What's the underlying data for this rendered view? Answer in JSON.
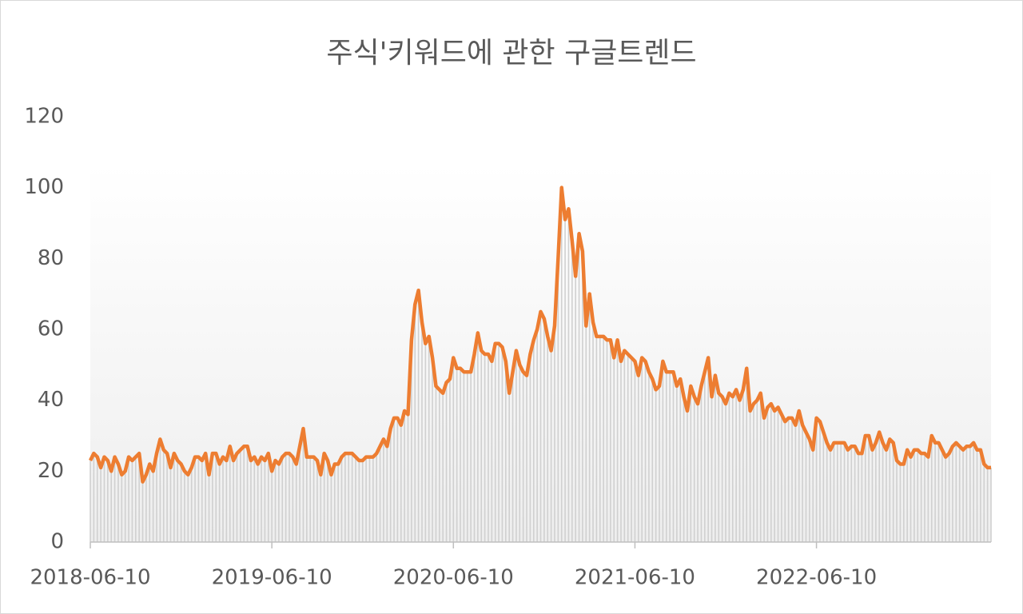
{
  "chart_data": {
    "type": "line",
    "title": "주식'키워드에 관한 구글트렌드",
    "categories": [
      "2018-06-10",
      null,
      null,
      null,
      null,
      null,
      null,
      null,
      null,
      null,
      null,
      null,
      null,
      null,
      null,
      null,
      null,
      null,
      null,
      null,
      null,
      null,
      null,
      null,
      null,
      null,
      null,
      null,
      null,
      null,
      null,
      null,
      null,
      null,
      null,
      null,
      null,
      null,
      null,
      null,
      null,
      null,
      null,
      null,
      null,
      null,
      null,
      null,
      null,
      null,
      null,
      null,
      "2019-06-10",
      null,
      null,
      null,
      null,
      null,
      null,
      null,
      null,
      null,
      null,
      null,
      null,
      null,
      null,
      null,
      null,
      null,
      null,
      null,
      null,
      null,
      null,
      null,
      null,
      null,
      null,
      null,
      null,
      null,
      null,
      null,
      null,
      null,
      null,
      null,
      null,
      null,
      null,
      null,
      null,
      null,
      null,
      null,
      null,
      null,
      null,
      null,
      null,
      null,
      null,
      null,
      "2020-06-10",
      null,
      null,
      null,
      null,
      null,
      null,
      null,
      null,
      null,
      null,
      null,
      null,
      null,
      null,
      null,
      null,
      null,
      null,
      null,
      null,
      null,
      null,
      null,
      null,
      null,
      null,
      null,
      null,
      null,
      null,
      null,
      null,
      null,
      null,
      null,
      null,
      null,
      null,
      null,
      null,
      null,
      null,
      null,
      null,
      null,
      null,
      null,
      null,
      null,
      null,
      null,
      "2021-06-10",
      null,
      null,
      null,
      null,
      null,
      null,
      null,
      null,
      null,
      null,
      null,
      null,
      null,
      null,
      null,
      null,
      null,
      null,
      null,
      null,
      null,
      null,
      null,
      null,
      null,
      null,
      null,
      null,
      null,
      null,
      null,
      null,
      null,
      null,
      null,
      null,
      null,
      null,
      null,
      null,
      null,
      null,
      null,
      null,
      null,
      null,
      null,
      null,
      null,
      null,
      null,
      "2022-06-10",
      null,
      null,
      null,
      null,
      null,
      null,
      null,
      null,
      null,
      null,
      null,
      null,
      null,
      null,
      null,
      null,
      null,
      null,
      null,
      null,
      null,
      null,
      null,
      null,
      null,
      null,
      null,
      null,
      null,
      null,
      null,
      null,
      null,
      null,
      null,
      null,
      null,
      null,
      null,
      null,
      null,
      null,
      null,
      null,
      null,
      null,
      null,
      null,
      null,
      null
    ],
    "series": [
      {
        "color": "#ed7d31",
        "bar_color": "#d0d0d0",
        "values": [
          23,
          25,
          24,
          21,
          24,
          23,
          20,
          24,
          22,
          19,
          20,
          24,
          23,
          24,
          25,
          17,
          19,
          22,
          20,
          25,
          29,
          26,
          25,
          21,
          25,
          23,
          22,
          20,
          19,
          21,
          24,
          24,
          23,
          25,
          19,
          25,
          25,
          22,
          24,
          23,
          27,
          23,
          25,
          26,
          27,
          27,
          23,
          24,
          22,
          24,
          23,
          25,
          20,
          23,
          22,
          24,
          25,
          25,
          24,
          22,
          27,
          32,
          24,
          24,
          24,
          23,
          19,
          25,
          23,
          19,
          22,
          22,
          24,
          25,
          25,
          25,
          24,
          23,
          23,
          24,
          24,
          24,
          25,
          27,
          29,
          27,
          32,
          35,
          35,
          33,
          37,
          36,
          57,
          67,
          71,
          62,
          56,
          58,
          52,
          44,
          43,
          42,
          45,
          46,
          52,
          49,
          49,
          48,
          48,
          48,
          53,
          59,
          54,
          53,
          53,
          51,
          56,
          56,
          55,
          51,
          42,
          48,
          54,
          50,
          48,
          47,
          53,
          57,
          60,
          65,
          63,
          58,
          54,
          61,
          80,
          100,
          91,
          94,
          85,
          75,
          87,
          82,
          61,
          70,
          62,
          58,
          58,
          58,
          57,
          57,
          52,
          57,
          51,
          54,
          53,
          52,
          51,
          47,
          52,
          51,
          48,
          46,
          43,
          44,
          51,
          48,
          48,
          48,
          44,
          46,
          41,
          37,
          44,
          41,
          39,
          44,
          48,
          52,
          41,
          47,
          42,
          41,
          39,
          42,
          41,
          43,
          40,
          43,
          49,
          37,
          39,
          40,
          42,
          35,
          38,
          39,
          37,
          38,
          36,
          34,
          35,
          35,
          33,
          37,
          33,
          31,
          29,
          26,
          35,
          34,
          31,
          28,
          26,
          28,
          28,
          28,
          28,
          26,
          27,
          27,
          25,
          25,
          30,
          30,
          26,
          28,
          31,
          28,
          26,
          29,
          28,
          23,
          22,
          22,
          26,
          24,
          26,
          26,
          25,
          25,
          24,
          30,
          28,
          28,
          26,
          24,
          25,
          27,
          28,
          27,
          26,
          27,
          27,
          28,
          26,
          26,
          22,
          21,
          21
        ]
      }
    ],
    "ylim": [
      0,
      120
    ],
    "yticks": [
      0,
      20,
      40,
      60,
      80,
      100,
      120
    ]
  }
}
